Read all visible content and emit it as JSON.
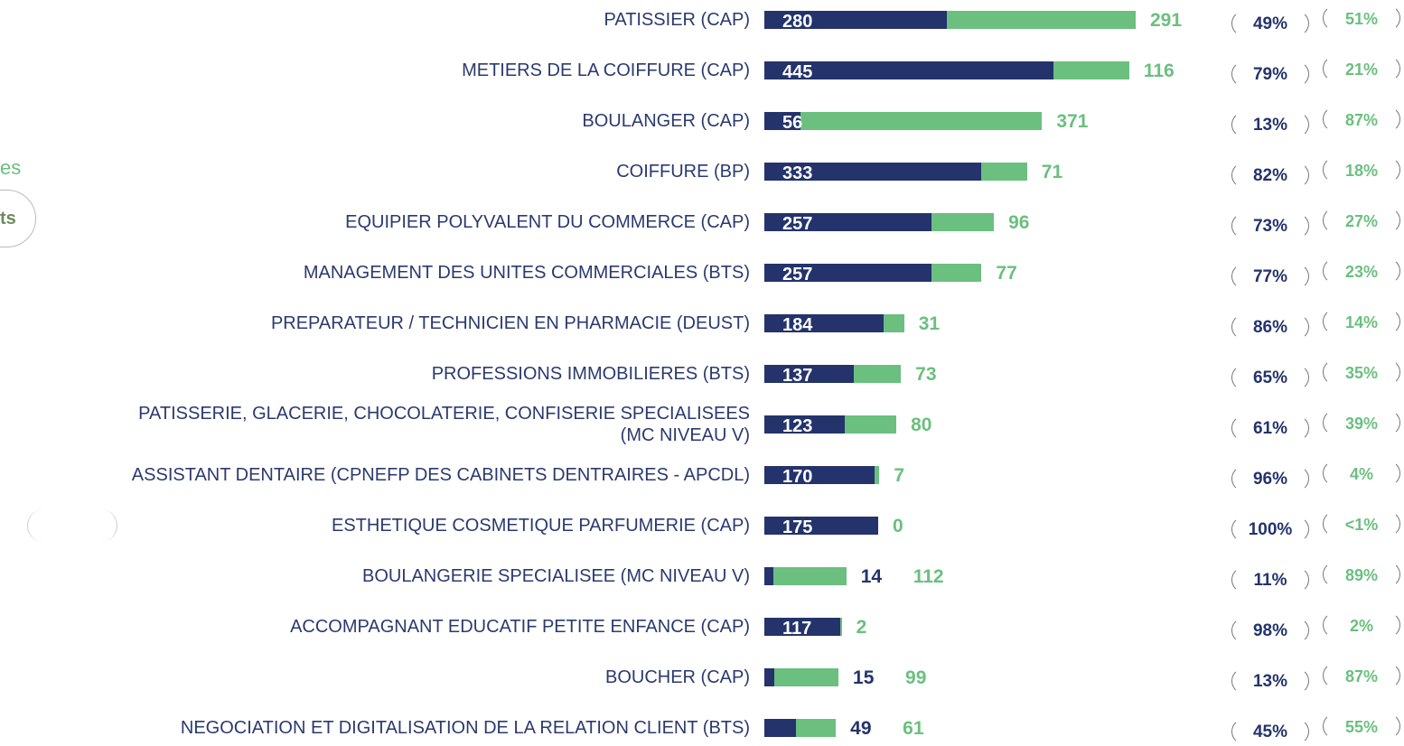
{
  "chart_data": {
    "type": "bar",
    "orientation": "horizontal",
    "stacked": true,
    "categories": [
      "PATISSIER (CAP)",
      "METIERS DE LA COIFFURE (CAP)",
      "BOULANGER (CAP)",
      "COIFFURE (BP)",
      "EQUIPIER POLYVALENT DU COMMERCE (CAP)",
      "MANAGEMENT DES UNITES COMMERCIALES (BTS)",
      "PREPARATEUR / TECHNICIEN EN PHARMACIE (DEUST)",
      "PROFESSIONS IMMOBILIERES (BTS)",
      "PATISSERIE, GLACERIE, CHOCOLATERIE, CONFISERIE SPECIALISEES\n(MC NIVEAU V)",
      "ASSISTANT DENTAIRE (CPNEFP DES CABINETS DENTRAIRES - APCDL)",
      "ESTHETIQUE COSMETIQUE PARFUMERIE (CAP)",
      "BOULANGERIE SPECIALISEE (MC NIVEAU V)",
      "ACCOMPAGNANT EDUCATIF PETITE ENFANCE (CAP)",
      "BOUCHER (CAP)",
      "NEGOCIATION ET DIGITALISATION DE LA RELATION CLIENT (BTS)"
    ],
    "series": [
      {
        "color": "#24336b",
        "values": [
          280,
          445,
          56,
          333,
          257,
          257,
          184,
          137,
          123,
          170,
          175,
          14,
          117,
          15,
          49
        ],
        "share_labels": [
          "49%",
          "79%",
          "13%",
          "82%",
          "73%",
          "77%",
          "86%",
          "65%",
          "61%",
          "96%",
          "100%",
          "11%",
          "98%",
          "13%",
          "45%"
        ]
      },
      {
        "color": "#6bbf7f",
        "values": [
          291,
          116,
          371,
          71,
          96,
          77,
          31,
          73,
          80,
          7,
          0,
          112,
          2,
          99,
          61
        ],
        "share_labels": [
          "51%",
          "21%",
          "87%",
          "18%",
          "27%",
          "23%",
          "14%",
          "35%",
          "39%",
          "4%",
          "<1%",
          "89%",
          "2%",
          "87%",
          "55%"
        ]
      }
    ]
  },
  "fragments": {
    "left_top": "es",
    "left_button": "ts"
  }
}
